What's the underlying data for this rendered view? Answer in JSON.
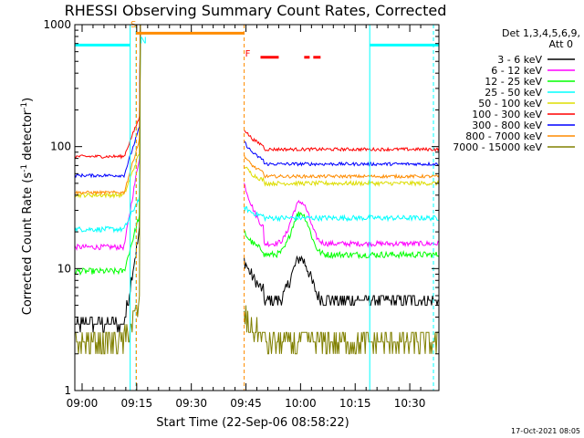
{
  "chart_data": {
    "type": "line",
    "title": "RHESSI Observing Summary Count Rates, Corrected",
    "xlabel": "Start Time (22-Sep-06 08:58:22)",
    "ylabel_main": "Corrected Count Rate (s",
    "ylabel_sup1": "-1",
    "ylabel_mid": " detector",
    "ylabel_sup2": "-1",
    "ylabel_end": ")",
    "yscale": "log",
    "ylim": [
      1,
      1000
    ],
    "xlim": [
      -2,
      98
    ],
    "x_units": "minutes after 09:00",
    "xticks": [
      {
        "value": 0,
        "label": "09:00"
      },
      {
        "value": 15,
        "label": "09:15"
      },
      {
        "value": 30,
        "label": "09:30"
      },
      {
        "value": 45,
        "label": "09:45"
      },
      {
        "value": 60,
        "label": "10:00"
      },
      {
        "value": 75,
        "label": "10:15"
      },
      {
        "value": 90,
        "label": "10:30"
      }
    ],
    "yticks": [
      {
        "value": 1,
        "label": "1"
      },
      {
        "value": 10,
        "label": "10"
      },
      {
        "value": 100,
        "label": "100"
      },
      {
        "value": 1000,
        "label": "1000"
      }
    ],
    "legend_header": [
      "Det 1,3,4,5,6,9,",
      "Att 0"
    ],
    "series": [
      {
        "name": "3 - 6 keV",
        "color": "#000000",
        "base_pre": 3.5,
        "base_post": 5.5,
        "peak": 12,
        "noise": 0.12
      },
      {
        "name": "6 - 12 keV",
        "color": "#ff00ff",
        "base_pre": 15,
        "base_post": 16,
        "peak": 50,
        "noise": 0.05
      },
      {
        "name": "12 - 25 keV",
        "color": "#00ff00",
        "base_pre": 9.5,
        "base_post": 13,
        "peak": 20,
        "noise": 0.06
      },
      {
        "name": "25 - 50 keV",
        "color": "#00ffff",
        "base_pre": 21,
        "base_post": 26,
        "peak": 32,
        "noise": 0.05
      },
      {
        "name": "50 - 100 keV",
        "color": "#dddd00",
        "base_pre": 40,
        "base_post": 50,
        "peak": 70,
        "noise": 0.04
      },
      {
        "name": "100 - 300 keV",
        "color": "#ff0000",
        "base_pre": 83,
        "base_post": 95,
        "peak": 140,
        "noise": 0.03
      },
      {
        "name": "300 - 800 keV",
        "color": "#0000ff",
        "base_pre": 58,
        "base_post": 72,
        "peak": 110,
        "noise": 0.03
      },
      {
        "name": "800 - 7000 keV",
        "color": "#ff8c00",
        "base_pre": 42,
        "base_post": 57,
        "peak": 85,
        "noise": 0.03
      },
      {
        "name": "7000 - 15000 keV",
        "color": "#808000",
        "base_pre": 2.5,
        "base_post": 2.5,
        "peak": 4,
        "noise": 0.25
      }
    ],
    "gaps": [
      [
        16,
        44.5
      ]
    ],
    "vertical_lines": [
      {
        "x": 13.2,
        "color": "#00ffff",
        "style": "solid"
      },
      {
        "x": 14.8,
        "color": "#00ffff",
        "style": "dashed"
      },
      {
        "x": 14.9,
        "color": "#ff8c00",
        "style": "dashed"
      },
      {
        "x": 44.5,
        "color": "#ff8c00",
        "style": "dashed"
      },
      {
        "x": 79,
        "color": "#00ffff",
        "style": "solid"
      },
      {
        "x": 96.5,
        "color": "#00ffff",
        "style": "dashed"
      }
    ],
    "flag_bars": [
      {
        "x0": -2,
        "x1": 13.2,
        "y": 680,
        "color": "#00ffff"
      },
      {
        "x0": 14.9,
        "x1": 44.5,
        "y": 850,
        "color": "#ff8c00"
      },
      {
        "x0": 79,
        "x1": 98,
        "y": 680,
        "color": "#00ffff"
      },
      {
        "x0": 49,
        "x1": 54,
        "y": 540,
        "color": "#ff0000"
      },
      {
        "x0": 61,
        "x1": 62.5,
        "y": 540,
        "color": "#ff0000"
      },
      {
        "x0": 63.5,
        "x1": 65.5,
        "y": 540,
        "color": "#ff0000"
      }
    ],
    "flag_labels": [
      {
        "text": "S",
        "x": 14.1,
        "y": 950,
        "color": "#ff8c00"
      },
      {
        "text": "N",
        "x": 16.8,
        "y": 700,
        "color": "#00ffff"
      },
      {
        "text": "F",
        "x": 45.5,
        "y": 545,
        "color": "#ff0000"
      }
    ],
    "timestamp": "17-Oct-2021 08:05"
  }
}
